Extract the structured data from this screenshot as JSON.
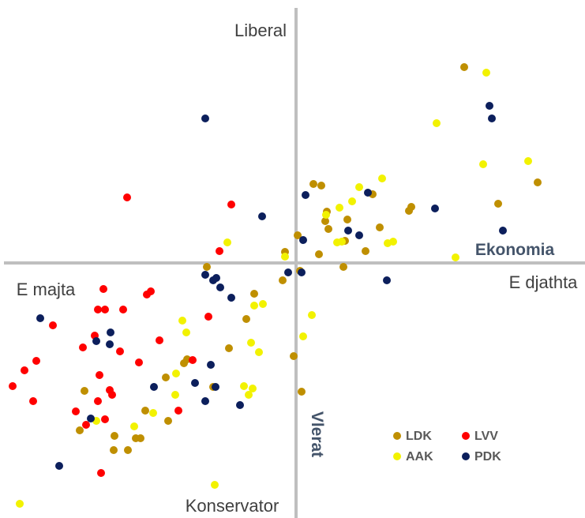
{
  "chart_data": {
    "type": "scatter",
    "labels": {
      "top": "Liberal",
      "bottom": "Konservator",
      "left": "E majta",
      "right": "E djathta",
      "x_axis": "Ekonomia",
      "y_axis": "Vlerat"
    },
    "xlim": [
      -375,
      366
    ],
    "ylim": [
      -323,
      333
    ],
    "legend": "lower right",
    "series": [
      {
        "name": "LDK",
        "color": "#bf8f00",
        "x": [
          213,
          306,
          256,
          146,
          143,
          106,
          22,
          32,
          97,
          39,
          37,
          41,
          65,
          62,
          29,
          88,
          60,
          2,
          -14,
          5,
          -17,
          -113,
          -53,
          -63,
          -85,
          -3,
          7,
          -138,
          -142,
          -165,
          -105,
          -191,
          -162,
          -268,
          -274,
          -230,
          -203,
          -197,
          -231,
          -213
        ],
        "y": [
          248,
          102,
          75,
          71,
          66,
          45,
          100,
          98,
          87,
          65,
          53,
          43,
          55,
          28,
          11,
          15,
          -5,
          35,
          14,
          -10,
          -22,
          -5,
          -39,
          -71,
          -108,
          -118,
          -163,
          -122,
          -127,
          -145,
          -157,
          -187,
          -200,
          -162,
          -212,
          -219,
          -222,
          -222,
          -237,
          -237
        ]
      },
      {
        "name": "LVV",
        "color": "#ff0000",
        "x": [
          -214,
          -82,
          -97,
          -244,
          -251,
          -242,
          -219,
          -189,
          -184,
          -308,
          -270,
          -255,
          -173,
          -223,
          -199,
          -111,
          -131,
          -329,
          -344,
          -359,
          -249,
          -236,
          -233,
          -333,
          -251,
          -279,
          -242,
          -266,
          -149,
          -247
        ],
        "y": [
          83,
          74,
          15,
          -33,
          -59,
          -59,
          -59,
          -40,
          -36,
          -79,
          -107,
          -92,
          -98,
          -112,
          -126,
          -68,
          -123,
          -124,
          -136,
          -156,
          -142,
          -161,
          -167,
          -175,
          -175,
          -188,
          -198,
          -205,
          -187,
          -266
        ]
      },
      {
        "name": "AAK",
        "color": "#f2f200",
        "x": [
          241,
          178,
          237,
          294,
          109,
          80,
          71,
          55,
          38,
          52,
          58,
          116,
          123,
          202,
          -87,
          -14,
          -42,
          -53,
          20,
          -144,
          -139,
          -57,
          -47,
          9,
          -152,
          -153,
          -66,
          -55,
          -60,
          -181,
          -253,
          -205,
          -103,
          -350
        ],
        "y": [
          241,
          177,
          125,
          129,
          107,
          96,
          78,
          70,
          61,
          26,
          27,
          25,
          27,
          7,
          26,
          8,
          -52,
          -54,
          -66,
          -73,
          -88,
          -101,
          -113,
          -93,
          -140,
          -167,
          -156,
          -159,
          -167,
          -190,
          -200,
          -207,
          -281,
          -305
        ]
      },
      {
        "name": "PDK",
        "color": "#0c1f5c",
        "x": [
          -115,
          245,
          248,
          12,
          91,
          -43,
          176,
          66,
          80,
          9,
          262,
          115,
          -10,
          7,
          -115,
          -105,
          -101,
          -96,
          -82,
          -324,
          -235,
          -253,
          -236,
          -108,
          -180,
          -128,
          -102,
          -115,
          -71,
          -260,
          -300
        ],
        "y": [
          183,
          199,
          183,
          86,
          89,
          59,
          69,
          41,
          35,
          29,
          41,
          -22,
          -12,
          -12,
          -15,
          -22,
          -19,
          -31,
          -44,
          -70,
          -88,
          -99,
          -103,
          -129,
          -157,
          -152,
          -157,
          -175,
          -180,
          -197,
          -257
        ]
      }
    ]
  }
}
